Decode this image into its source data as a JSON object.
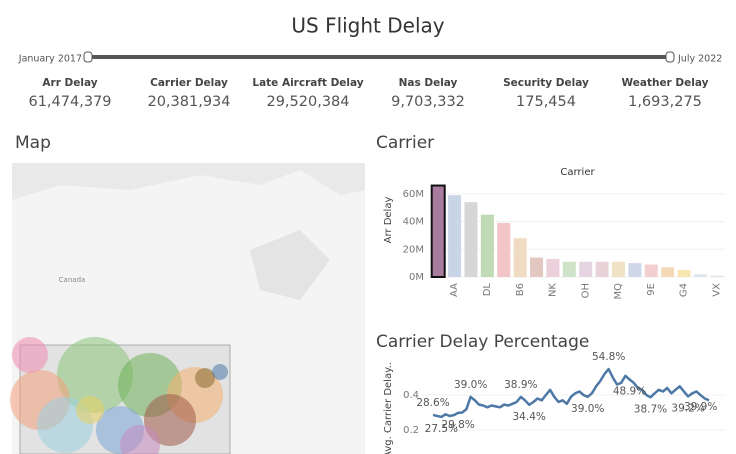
{
  "title": "US Flight Delay",
  "slider": {
    "start": "January 2017",
    "end": "July 2022"
  },
  "kpis": [
    {
      "label": "Arr Delay",
      "value": "61,474,379"
    },
    {
      "label": "Carrier Delay",
      "value": "20,381,934"
    },
    {
      "label": "Late Aircraft Delay",
      "value": "29,520,384"
    },
    {
      "label": "Nas Delay",
      "value": "9,703,332"
    },
    {
      "label": "Security Delay",
      "value": "175,454"
    },
    {
      "label": "Weather Delay",
      "value": "1,693,275"
    }
  ],
  "map": {
    "title": "Map",
    "country_label": "Canada"
  },
  "chart_data": [
    {
      "type": "bar",
      "section_title": "Carrier",
      "title": "Carrier",
      "y_label": "Arr Delay",
      "categories": [
        "AA",
        null,
        "DL",
        null,
        "B6",
        null,
        "NK",
        null,
        "OH",
        null,
        "MQ",
        null,
        "9E",
        null,
        "G4",
        null,
        "VX",
        null
      ],
      "values": [
        66,
        59,
        54,
        45,
        39,
        28,
        14,
        13,
        11,
        11,
        11,
        11,
        10,
        9,
        7,
        5,
        2,
        1
      ],
      "colors": [
        "#a97b9f",
        "#c9d4e6",
        "#d6d6d6",
        "#bfdab4",
        "#f2c6c6",
        "#f0dcc2",
        "#e2c8c0",
        "#ecd0dc",
        "#cfe3c8",
        "#e5d5e3",
        "#e9d2d8",
        "#f0e2c4",
        "#cdd7e8",
        "#f3cfcf",
        "#f3d9b8",
        "#f6e7b0",
        "#dfe6ee",
        "#e3e3e3"
      ],
      "ylim": [
        0,
        70
      ],
      "yticks": [
        {
          "value": 0,
          "label": "0M"
        },
        {
          "value": 20,
          "label": "20M"
        },
        {
          "value": 40,
          "label": "40M"
        },
        {
          "value": 60,
          "label": "60M"
        }
      ],
      "grid": true
    },
    {
      "type": "line",
      "section_title": "Carrier Delay Percentage",
      "y_label": "Avg. Carrier Delay..",
      "color": "#4e79a7",
      "values": [
        0.286,
        0.28,
        0.275,
        0.29,
        0.28,
        0.285,
        0.298,
        0.3,
        0.32,
        0.39,
        0.37,
        0.345,
        0.34,
        0.33,
        0.34,
        0.335,
        0.33,
        0.345,
        0.34,
        0.35,
        0.36,
        0.389,
        0.37,
        0.344,
        0.36,
        0.38,
        0.37,
        0.4,
        0.43,
        0.39,
        0.36,
        0.37,
        0.35,
        0.39,
        0.41,
        0.42,
        0.4,
        0.39,
        0.41,
        0.45,
        0.48,
        0.52,
        0.548,
        0.5,
        0.46,
        0.47,
        0.51,
        0.489,
        0.47,
        0.44,
        0.43,
        0.4,
        0.387,
        0.41,
        0.43,
        0.42,
        0.44,
        0.41,
        0.43,
        0.45,
        0.42,
        0.392,
        0.41,
        0.42,
        0.399,
        0.38,
        0.37
      ],
      "value_labels": [
        "28.6%",
        null,
        "27.5%",
        null,
        null,
        null,
        "29.8%",
        null,
        null,
        "39.0%",
        null,
        null,
        null,
        null,
        null,
        null,
        null,
        null,
        null,
        null,
        null,
        "38.9%",
        null,
        "34.4%",
        null,
        null,
        null,
        null,
        null,
        null,
        null,
        null,
        null,
        null,
        null,
        null,
        null,
        "39.0%",
        null,
        null,
        null,
        null,
        "54.8%",
        null,
        null,
        null,
        null,
        "48.9%",
        null,
        null,
        null,
        null,
        "38.7%",
        null,
        null,
        null,
        null,
        null,
        null,
        null,
        null,
        "39.2%",
        null,
        null,
        "39.9%",
        null,
        null
      ],
      "ylim": [
        0,
        0.6
      ],
      "yticks": [
        0.2,
        0.4
      ],
      "grid": true
    }
  ]
}
